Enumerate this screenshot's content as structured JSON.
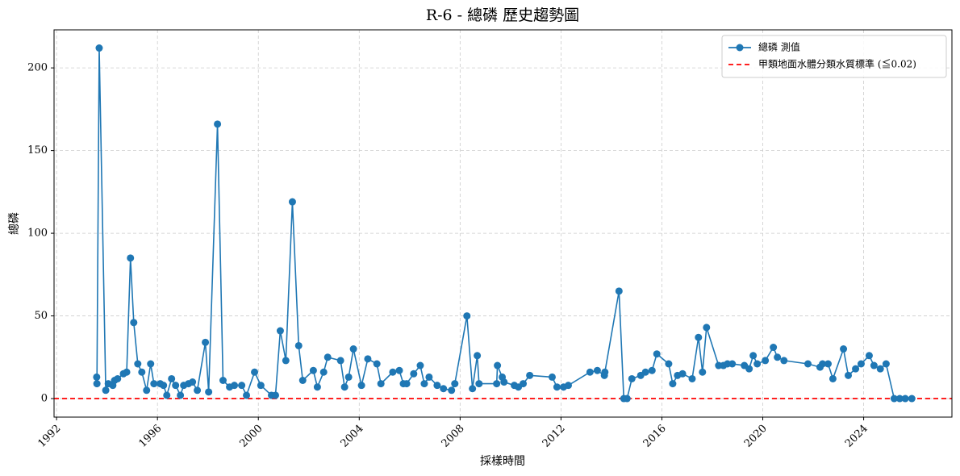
{
  "chart_data": {
    "type": "line",
    "title": "R-6 - 總磷 歷史趨勢圖",
    "x_label": "採樣時間",
    "y_label": "總磷",
    "x": [
      1993.59,
      1993.6,
      1993.69,
      1993.95,
      1994.05,
      1994.23,
      1994.3,
      1994.42,
      1994.65,
      1994.78,
      1994.93,
      1995.06,
      1995.22,
      1995.38,
      1995.57,
      1995.73,
      1995.86,
      1996.11,
      1996.24,
      1996.37,
      1996.56,
      1996.72,
      1996.91,
      1997.04,
      1997.23,
      1997.39,
      1997.58,
      1997.9,
      1998.03,
      1998.38,
      1998.6,
      1998.86,
      1999.05,
      1999.34,
      1999.53,
      1999.85,
      2000.1,
      2000.52,
      2000.68,
      2000.87,
      2001.09,
      2001.35,
      2001.6,
      2001.76,
      2002.18,
      2002.34,
      2002.59,
      2002.75,
      2003.26,
      2003.42,
      2003.58,
      2003.77,
      2004.09,
      2004.34,
      2004.7,
      2004.86,
      2005.33,
      2005.59,
      2005.75,
      2005.88,
      2006.16,
      2006.42,
      2006.58,
      2006.77,
      2007.09,
      2007.34,
      2007.66,
      2007.79,
      2008.27,
      2008.49,
      2008.68,
      2008.75,
      2009.45,
      2009.48,
      2009.67,
      2009.74,
      2010.15,
      2010.31,
      2010.5,
      2010.76,
      2011.65,
      2011.84,
      2012.1,
      2012.29,
      2013.15,
      2013.44,
      2013.72,
      2013.74,
      2014.3,
      2014.49,
      2014.62,
      2014.81,
      2015.16,
      2015.35,
      2015.61,
      2015.8,
      2016.27,
      2016.43,
      2016.62,
      2016.82,
      2017.2,
      2017.45,
      2017.61,
      2017.77,
      2018.25,
      2018.44,
      2018.6,
      2018.79,
      2019.27,
      2019.46,
      2019.62,
      2019.78,
      2020.1,
      2020.42,
      2020.58,
      2020.84,
      2021.79,
      2022.27,
      2022.37,
      2022.59,
      2022.78,
      2023.2,
      2023.39,
      2023.68,
      2023.9,
      2024.22,
      2024.41,
      2024.66,
      2024.89,
      2025.21,
      2025.43,
      2025.65,
      2025.91
    ],
    "series": [
      {
        "name": "總磷 測值",
        "color": "#1f77b4",
        "values": [
          13,
          9,
          212,
          5,
          9,
          8,
          11,
          12,
          15,
          16,
          85,
          46,
          21,
          16,
          5,
          21,
          9,
          9,
          8,
          2,
          12,
          8,
          2,
          8,
          9,
          10,
          5,
          34,
          4,
          166,
          11,
          7,
          8,
          8,
          2,
          16,
          8,
          2,
          2,
          41,
          23,
          119,
          32,
          11,
          17,
          7,
          16,
          25,
          23,
          7,
          13,
          30,
          8,
          24,
          21,
          9,
          16,
          17,
          9,
          9,
          15,
          20,
          9,
          13,
          8,
          6,
          5,
          9,
          50,
          6,
          26,
          9,
          9,
          20,
          13,
          10,
          8,
          7,
          9,
          14,
          13,
          7,
          7,
          8,
          16,
          17,
          14,
          16,
          65,
          0,
          0,
          12,
          14,
          16,
          17,
          27,
          21,
          9,
          14,
          15,
          12,
          37,
          16,
          43,
          20,
          20,
          21,
          21,
          20,
          18,
          26,
          21,
          23,
          31,
          25,
          23,
          21,
          19,
          21,
          21,
          12,
          30,
          14,
          18,
          21,
          26,
          20,
          18,
          21,
          0,
          0,
          0,
          0
        ]
      }
    ],
    "hlines": [
      {
        "name": "甲類地面水體分類水質標準 (≦0.02)",
        "value": 0.02,
        "color": "#ff0000"
      }
    ],
    "xlim": [
      1991.9,
      2027.5
    ],
    "xticks": [
      1992,
      1996,
      2000,
      2004,
      2008,
      2012,
      2016,
      2020,
      2024
    ],
    "ylim": [
      -11.2,
      223
    ],
    "yticks": [
      0,
      50,
      100,
      150,
      200
    ],
    "grid": true,
    "legend": "upper right"
  }
}
